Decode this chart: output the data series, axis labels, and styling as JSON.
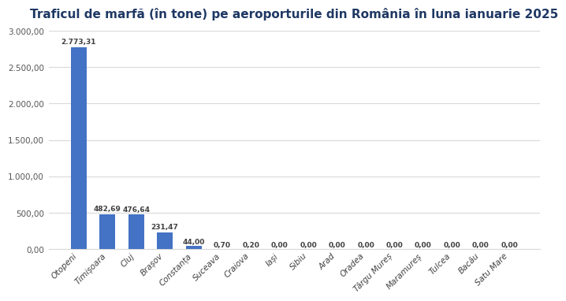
{
  "title": "Traficul de marfă (în tone) pe aeroporturile din România în luna ianuarie 2025",
  "categories": [
    "Otopeni",
    "Timișoara",
    "Cluj",
    "Brașov",
    "Constanța",
    "Suceava",
    "Craiova",
    "Iași",
    "Sibiu",
    "Arad",
    "Oradea",
    "Târgu Mureș",
    "Maramureș",
    "Tulcea",
    "Bacău",
    "Satu Mare"
  ],
  "values": [
    2773.31,
    482.69,
    476.64,
    231.47,
    44.0,
    0.7,
    0.2,
    0.0,
    0.0,
    0.0,
    0.0,
    0.0,
    0.0,
    0.0,
    0.0,
    0.0
  ],
  "bar_color": "#4472C4",
  "background_color": "#FFFFFF",
  "ylim": [
    0,
    3000
  ],
  "yticks": [
    0,
    500,
    1000,
    1500,
    2000,
    2500,
    3000
  ],
  "ytick_labels": [
    "0,00",
    "500,00",
    "1.000,00",
    "1.500,00",
    "2.000,00",
    "2.500,00",
    "3.000,00"
  ],
  "bar_labels": [
    "2.773,31",
    "482,69",
    "476,64",
    "231,47",
    "44,00",
    "0,70",
    "0,20",
    "0,00",
    "0,00",
    "0,00",
    "0,00",
    "0,00",
    "0,00",
    "0,00",
    "0,00",
    "0,00"
  ],
  "title_fontsize": 11,
  "label_fontsize": 6.5,
  "tick_fontsize": 7.5,
  "ytick_fontsize": 7.5,
  "grid_color": "#D9D9D9",
  "title_color": "#1F3864",
  "bar_label_color": "#404040",
  "xtick_color": "#404040"
}
